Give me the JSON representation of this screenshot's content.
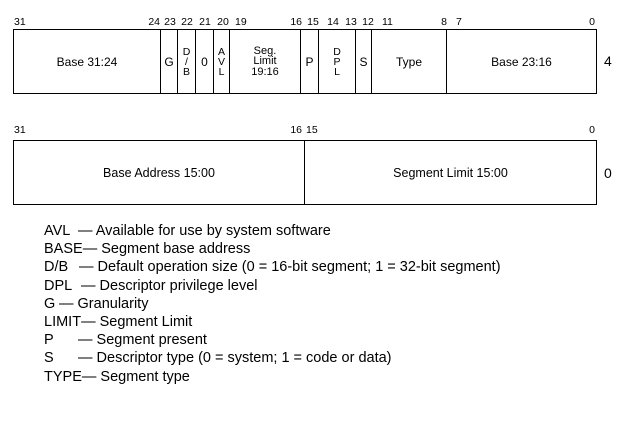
{
  "upper": {
    "bits": {
      "b31": "31",
      "b24": "24",
      "b23": "23",
      "b22": "22",
      "b21": "21",
      "b20": "20",
      "b19": "19",
      "b16": "16",
      "b15": "15",
      "b14": "14",
      "b13": "13",
      "b12": "12",
      "b11": "11",
      "b8": "8",
      "b7": "7",
      "b0": "0"
    },
    "fields": {
      "base_31_24": "Base 31:24",
      "g": "G",
      "db": [
        "D",
        "/",
        "B"
      ],
      "zero": "0",
      "avl": [
        "A",
        "V",
        "L"
      ],
      "seg_limit": [
        "Seg.",
        "Limit",
        "19:16"
      ],
      "p": "P",
      "dpl": [
        "D",
        "P",
        "L"
      ],
      "s": "S",
      "type": "Type",
      "base_23_16": "Base 23:16"
    },
    "offset": "4"
  },
  "lower": {
    "bits": {
      "b31": "31",
      "b16": "16",
      "b15": "15",
      "b0": "0"
    },
    "fields": {
      "base_address": "Base Address 15:00",
      "segment_limit": "Segment Limit 15:00"
    },
    "offset": "0"
  },
  "legend": [
    {
      "term": "AVL",
      "desc": "— Available for use by system software"
    },
    {
      "term": "BASE",
      "desc": "— Segment base address"
    },
    {
      "term": "D/B",
      "desc": "— Default operation size (0 = 16-bit segment; 1 = 32-bit segment)"
    },
    {
      "term": "DPL",
      "desc": "— Descriptor privilege level"
    },
    {
      "term": "G",
      "desc": "— Granularity"
    },
    {
      "term": "LIMIT",
      "desc": "— Segment Limit"
    },
    {
      "term": "P",
      "desc": "— Segment present"
    },
    {
      "term": "S",
      "desc": "— Descriptor type (0 = system; 1 = code or data)"
    },
    {
      "term": "TYPE",
      "desc": "— Segment type"
    }
  ]
}
